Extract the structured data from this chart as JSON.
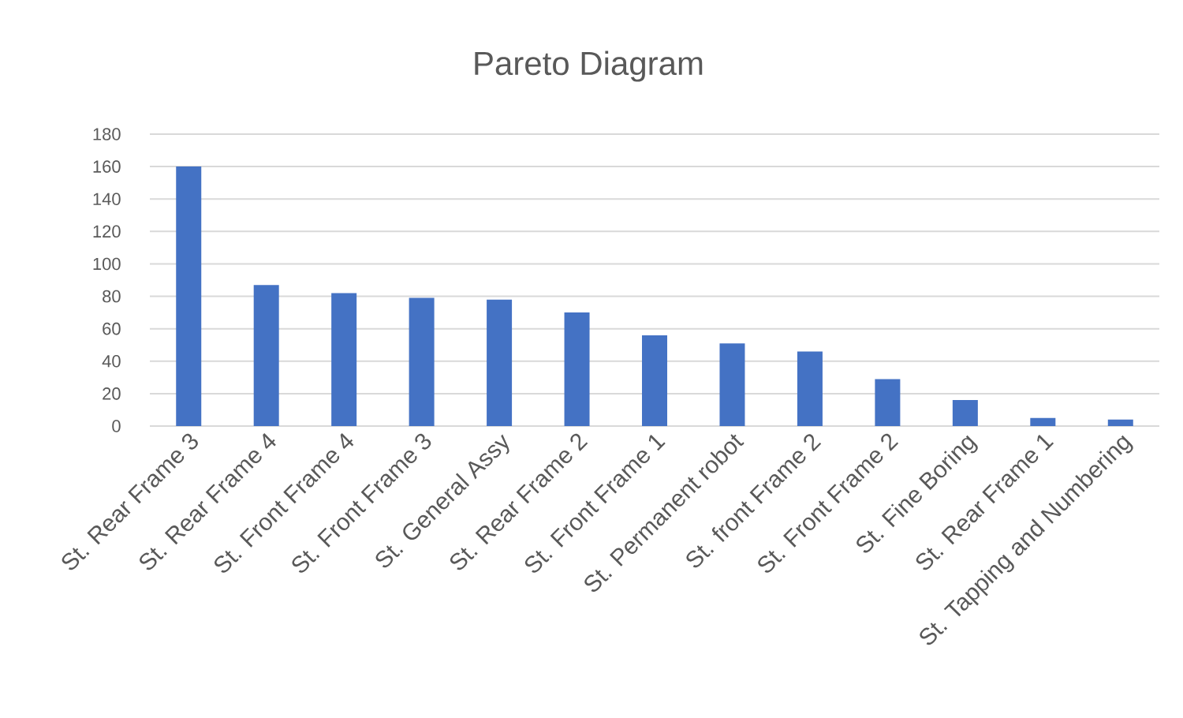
{
  "chart_data": {
    "type": "bar",
    "title": "Pareto Diagram",
    "categories": [
      "St. Rear Frame 3",
      "St. Rear Frame 4",
      "St. Front Frame 4",
      "St. Front Frame 3",
      "St. General Assy",
      "St. Rear Frame 2",
      "St. Front Frame 1",
      "St. Permanent robot",
      "St. front Frame 2",
      "St. Front Frame 2",
      "St. Fine Boring",
      "St. Rear Frame 1",
      "St. Tapping and Numbering"
    ],
    "values": [
      160,
      87,
      82,
      79,
      78,
      70,
      56,
      51,
      46,
      29,
      16,
      5,
      4
    ],
    "color": "#4472c4",
    "ylim": [
      0,
      180
    ],
    "yticks": [
      0,
      20,
      40,
      60,
      80,
      100,
      120,
      140,
      160,
      180
    ],
    "grid": "y"
  }
}
